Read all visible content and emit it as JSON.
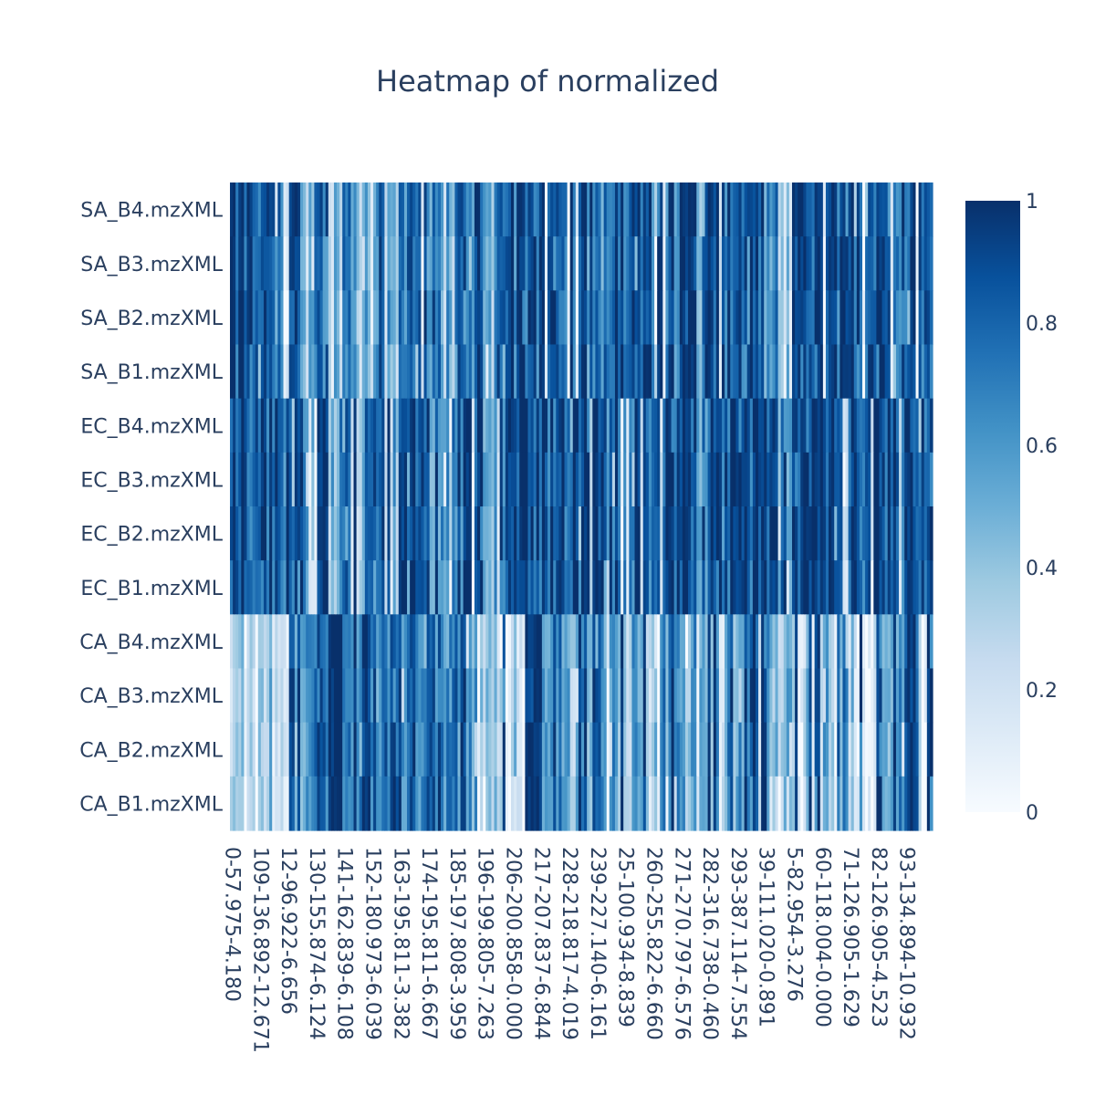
{
  "chart_data": {
    "type": "heatmap",
    "title": "Heatmap of normalized",
    "colorscale": "Blues",
    "colorscale_stops": [
      "#f7fbff",
      "#deebf7",
      "#c6dbef",
      "#9ecae1",
      "#6baed6",
      "#4292c6",
      "#2171b5",
      "#08519c",
      "#08306b"
    ],
    "zlim": [
      0,
      1
    ],
    "colorbar_ticks": [
      "1",
      "0.8",
      "0.6",
      "0.4",
      "0.2",
      "0"
    ],
    "colorbar_tick_values": [
      1,
      0.8,
      0.6,
      0.4,
      0.2,
      0
    ],
    "y_categories": [
      "SA_B4.mzXML",
      "SA_B3.mzXML",
      "SA_B2.mzXML",
      "SA_B1.mzXML",
      "EC_B4.mzXML",
      "EC_B3.mzXML",
      "EC_B2.mzXML",
      "EC_B1.mzXML",
      "CA_B4.mzXML",
      "CA_B3.mzXML",
      "CA_B2.mzXML",
      "CA_B1.mzXML"
    ],
    "x_tick_labels": [
      "0-57.975-4.180",
      "109-136.892-12.671",
      "12-96.922-6.656",
      "130-155.874-6.124",
      "141-162.839-6.108",
      "152-180.973-6.039",
      "163-195.811-3.382",
      "174-195.811-6.667",
      "185-197.808-3.959",
      "196-199.805-7.263",
      "206-200.858-0.000",
      "217-207.837-6.844",
      "228-218.817-4.019",
      "239-227.140-6.161",
      "25-100.934-8.839",
      "260-255.822-6.660",
      "271-270.797-6.576",
      "282-316.738-0.460",
      "293-387.114-7.554",
      "39-111.020-0.891",
      "5-82.954-3.276",
      "60-118.004-0.000",
      "71-126.905-1.629",
      "82-126.905-4.523",
      "93-134.894-10.932"
    ],
    "n_columns": 250,
    "group_means": {
      "SA": [
        0.88,
        0.87,
        0.9,
        0.72,
        0.88,
        0.6,
        0.75,
        0.45,
        0.68,
        0.45,
        0.78,
        0.4,
        0.85,
        0.78,
        0.65,
        0.5,
        0.72,
        0.8,
        0.55,
        0.8,
        0.85,
        0.82,
        0.88,
        0.95,
        0.85,
        0.78,
        0.72,
        0.78,
        0.88,
        0.82,
        0.85,
        0.85,
        0.9,
        0.6,
        0.9,
        0.82,
        0.88,
        0.88,
        0.6,
        0.3,
        0.95,
        0.92,
        0.92,
        0.9,
        0.8,
        0.85,
        0.92,
        0.9,
        0.92,
        0.9
      ],
      "EC": [
        0.92,
        0.93,
        0.95,
        0.8,
        0.92,
        0.7,
        0.85,
        0.5,
        0.8,
        0.5,
        0.88,
        0.45,
        0.9,
        0.85,
        0.75,
        0.6,
        0.85,
        0.9,
        0.55,
        0.88,
        0.92,
        0.9,
        0.92,
        0.95,
        0.9,
        0.85,
        0.85,
        0.82,
        0.9,
        0.85,
        0.9,
        0.85,
        0.9,
        0.7,
        0.92,
        0.85,
        0.9,
        0.9,
        0.8,
        0.7,
        0.95,
        0.92,
        0.95,
        0.92,
        0.85,
        0.9,
        0.92,
        0.92,
        0.95,
        0.92
      ],
      "CA": [
        0.35,
        0.15,
        0.4,
        0.3,
        0.7,
        0.55,
        0.85,
        0.88,
        0.9,
        0.85,
        0.55,
        0.8,
        0.75,
        0.6,
        0.85,
        0.7,
        0.75,
        0.5,
        0.45,
        0.2,
        0.25,
        0.8,
        0.5,
        0.6,
        0.45,
        0.55,
        0.75,
        0.6,
        0.5,
        0.4,
        0.55,
        0.65,
        0.5,
        0.55,
        0.45,
        0.6,
        0.7,
        0.85,
        0.5,
        0.35,
        0.3,
        0.4,
        0.4,
        0.6,
        0.3,
        0.2,
        0.35,
        0.7,
        0.85,
        0.15
      ]
    }
  }
}
